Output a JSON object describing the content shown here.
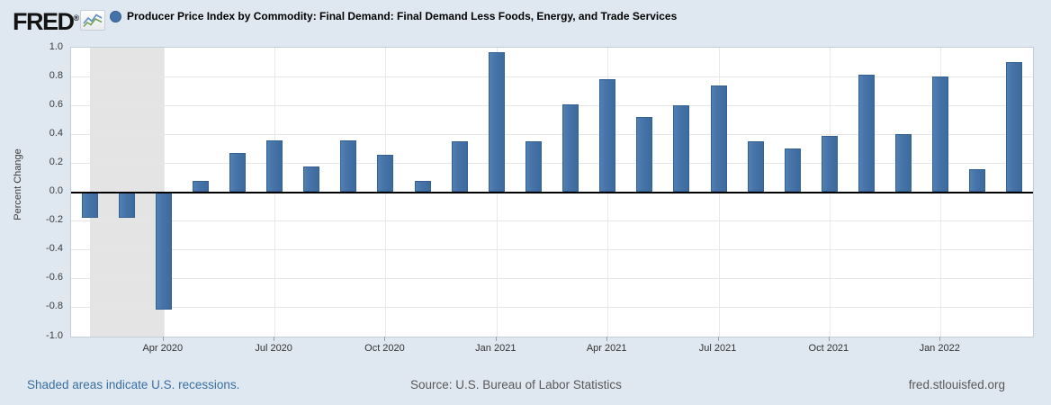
{
  "header": {
    "logo_text": "FRED",
    "logo_reg": "®",
    "series_title": "Producer Price Index by Commodity: Final Demand: Final Demand Less Foods, Energy, and Trade Services"
  },
  "footer": {
    "recession_note": "Shaded areas indicate U.S. recessions.",
    "source": "Source: U.S. Bureau of Labor Statistics",
    "site": "fred.stlouisfed.org"
  },
  "colors": {
    "bar": "#4572a7",
    "page_background": "#dfe8f0",
    "plot_background": "#ffffff",
    "recession_shading": "#e4e4e4",
    "zero_line": "#000000"
  },
  "chart_data": {
    "type": "bar",
    "title": "Producer Price Index by Commodity: Final Demand: Final Demand Less Foods, Energy, and Trade Services",
    "xlabel": "",
    "ylabel": "Percent Change",
    "ylim": [
      -1.0,
      1.0
    ],
    "ytick_step": 0.2,
    "grid": true,
    "legend_position": "top",
    "x": [
      "2020-02",
      "2020-03",
      "2020-04",
      "2020-05",
      "2020-06",
      "2020-07",
      "2020-08",
      "2020-09",
      "2020-10",
      "2020-11",
      "2020-12",
      "2021-01",
      "2021-02",
      "2021-03",
      "2021-04",
      "2021-05",
      "2021-06",
      "2021-07",
      "2021-08",
      "2021-09",
      "2021-10",
      "2021-11",
      "2021-12",
      "2022-01",
      "2022-02",
      "2022-03"
    ],
    "values": [
      -0.18,
      -0.18,
      -0.81,
      0.08,
      0.27,
      0.36,
      0.18,
      0.36,
      0.26,
      0.08,
      0.35,
      0.97,
      0.35,
      0.61,
      0.78,
      0.52,
      0.6,
      0.74,
      0.35,
      0.3,
      0.39,
      0.81,
      0.4,
      0.8,
      0.16,
      0.9
    ],
    "xtick_indices": [
      2,
      5,
      8,
      11,
      14,
      17,
      20,
      23
    ],
    "xtick_labels": [
      "Apr 2020",
      "Jul 2020",
      "Oct 2020",
      "Jan 2021",
      "Apr 2021",
      "Jul 2021",
      "Oct 2021",
      "Jan 2022"
    ],
    "recession_band": {
      "from": "2020-02",
      "to": "2020-04"
    }
  }
}
